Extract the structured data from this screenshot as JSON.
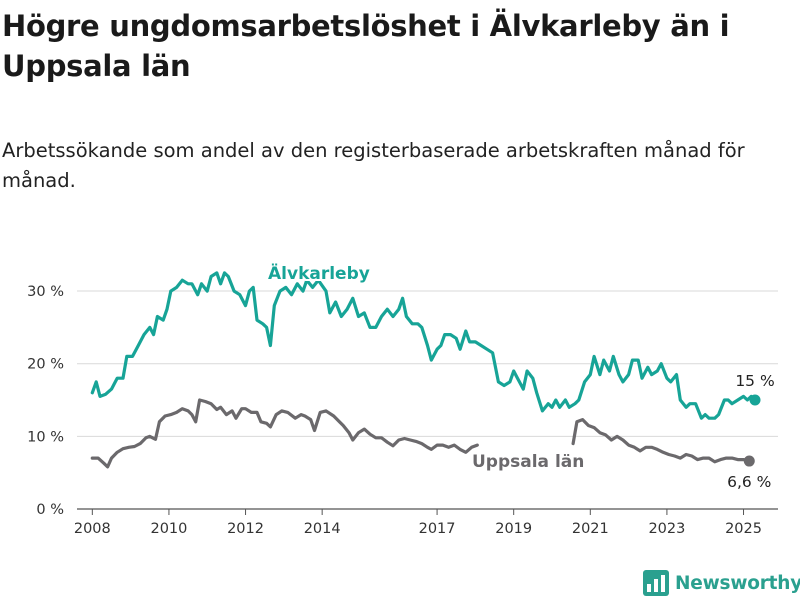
{
  "title": "Högre ungdomsarbetslöshet i Älvkarleby än i Uppsala län",
  "subtitle": "Arbetssökande som andel av den registerbaserade arbetskraften månad för månad.",
  "brand": {
    "name": "Newsworthy",
    "icon": "newsworthy-logo-icon"
  },
  "colors": {
    "alvkarleby": "#17a497",
    "uppsala": "#6b696c",
    "grid": "#d9d9d9"
  },
  "chart_data": {
    "type": "line",
    "title": "Högre ungdomsarbetslöshet i Älvkarleby än i Uppsala län",
    "xlabel": "",
    "ylabel": "",
    "xlim": [
      2007.6,
      2025.9
    ],
    "ylim": [
      0,
      34
    ],
    "grid": true,
    "legend": "inline labels",
    "x_ticks": [
      2008,
      2010,
      2012,
      2014,
      2017,
      2019,
      2021,
      2023,
      2025
    ],
    "x_tick_labels": [
      "2008",
      "2010",
      "2012",
      "2014",
      "2017",
      "2019",
      "2021",
      "2023",
      "2025"
    ],
    "y_ticks": [
      0,
      10,
      20,
      30
    ],
    "y_tick_labels": [
      "0 %",
      "10 %",
      "20 %",
      "30 %"
    ],
    "series": [
      {
        "name": "Älvkarleby",
        "end_label": "15 %",
        "points": [
          [
            2008.0,
            16.0
          ],
          [
            2008.1,
            17.5
          ],
          [
            2008.2,
            15.5
          ],
          [
            2008.35,
            15.8
          ],
          [
            2008.5,
            16.5
          ],
          [
            2008.65,
            18.0
          ],
          [
            2008.8,
            18.0
          ],
          [
            2008.9,
            21.0
          ],
          [
            2009.05,
            21.0
          ],
          [
            2009.2,
            22.5
          ],
          [
            2009.35,
            24.0
          ],
          [
            2009.5,
            25.0
          ],
          [
            2009.6,
            24.0
          ],
          [
            2009.7,
            26.5
          ],
          [
            2009.85,
            26.0
          ],
          [
            2009.95,
            27.5
          ],
          [
            2010.05,
            30.0
          ],
          [
            2010.2,
            30.5
          ],
          [
            2010.35,
            31.5
          ],
          [
            2010.5,
            31.0
          ],
          [
            2010.6,
            31.0
          ],
          [
            2010.75,
            29.5
          ],
          [
            2010.85,
            31.0
          ],
          [
            2011.0,
            30.0
          ],
          [
            2011.1,
            32.0
          ],
          [
            2011.25,
            32.5
          ],
          [
            2011.35,
            31.0
          ],
          [
            2011.45,
            32.5
          ],
          [
            2011.55,
            32.0
          ],
          [
            2011.7,
            30.0
          ],
          [
            2011.85,
            29.5
          ],
          [
            2012.0,
            28.0
          ],
          [
            2012.1,
            30.0
          ],
          [
            2012.2,
            30.5
          ],
          [
            2012.3,
            26.0
          ],
          [
            2012.45,
            25.5
          ],
          [
            2012.55,
            25.0
          ],
          [
            2012.65,
            22.5
          ],
          [
            2012.75,
            28.0
          ],
          [
            2012.9,
            30.0
          ],
          [
            2013.05,
            30.5
          ],
          [
            2013.2,
            29.5
          ],
          [
            2013.35,
            31.0
          ],
          [
            2013.5,
            30.0
          ],
          [
            2013.6,
            31.5
          ],
          [
            2013.75,
            30.5
          ],
          [
            2013.9,
            31.5
          ],
          [
            2014.1,
            30.0
          ],
          [
            2014.2,
            27.0
          ],
          [
            2014.35,
            28.5
          ],
          [
            2014.5,
            26.5
          ],
          [
            2014.65,
            27.5
          ],
          [
            2014.8,
            29.0
          ],
          [
            2014.95,
            26.5
          ],
          [
            2015.1,
            27.0
          ],
          [
            2015.25,
            25.0
          ],
          [
            2015.4,
            25.0
          ],
          [
            2015.55,
            26.5
          ],
          [
            2015.7,
            27.5
          ],
          [
            2015.85,
            26.5
          ],
          [
            2016.0,
            27.5
          ],
          [
            2016.1,
            29.0
          ],
          [
            2016.2,
            26.5
          ],
          [
            2016.35,
            25.5
          ],
          [
            2016.5,
            25.5
          ],
          [
            2016.6,
            25.0
          ],
          [
            2016.75,
            22.5
          ],
          [
            2016.85,
            20.5
          ],
          [
            2017.0,
            22.0
          ],
          [
            2017.1,
            22.5
          ],
          [
            2017.2,
            24.0
          ],
          [
            2017.35,
            24.0
          ],
          [
            2017.5,
            23.5
          ],
          [
            2017.6,
            22.0
          ],
          [
            2017.75,
            24.5
          ],
          [
            2017.85,
            23.0
          ],
          [
            2018.0,
            23.0
          ],
          [
            2018.15,
            22.5
          ],
          [
            2018.3,
            22.0
          ],
          [
            2018.45,
            21.5
          ],
          [
            2018.6,
            17.5
          ],
          [
            2018.75,
            17.0
          ],
          [
            2018.9,
            17.5
          ],
          [
            2019.0,
            19.0
          ],
          [
            2019.1,
            18.0
          ],
          [
            2019.25,
            16.5
          ],
          [
            2019.35,
            19.0
          ],
          [
            2019.5,
            18.0
          ],
          [
            2019.6,
            16.0
          ],
          [
            2019.75,
            13.5
          ],
          [
            2019.9,
            14.5
          ],
          [
            2020.0,
            14.0
          ],
          [
            2020.1,
            15.0
          ],
          [
            2020.2,
            14.0
          ],
          [
            2020.35,
            15.0
          ],
          [
            2020.45,
            14.0
          ],
          [
            2020.6,
            14.5
          ],
          [
            2020.7,
            15.0
          ],
          [
            2020.85,
            17.5
          ],
          [
            2021.0,
            18.5
          ],
          [
            2021.1,
            21.0
          ],
          [
            2021.25,
            18.5
          ],
          [
            2021.35,
            20.5
          ],
          [
            2021.5,
            19.0
          ],
          [
            2021.6,
            21.0
          ],
          [
            2021.75,
            18.5
          ],
          [
            2021.85,
            17.5
          ],
          [
            2022.0,
            18.5
          ],
          [
            2022.1,
            20.5
          ],
          [
            2022.25,
            20.5
          ],
          [
            2022.35,
            18.0
          ],
          [
            2022.5,
            19.5
          ],
          [
            2022.6,
            18.5
          ],
          [
            2022.75,
            19.0
          ],
          [
            2022.85,
            20.0
          ],
          [
            2023.0,
            18.0
          ],
          [
            2023.1,
            17.5
          ],
          [
            2023.25,
            18.5
          ],
          [
            2023.35,
            15.0
          ],
          [
            2023.5,
            14.0
          ],
          [
            2023.6,
            14.5
          ],
          [
            2023.75,
            14.5
          ],
          [
            2023.9,
            12.5
          ],
          [
            2024.0,
            13.0
          ],
          [
            2024.1,
            12.5
          ],
          [
            2024.25,
            12.5
          ],
          [
            2024.35,
            13.0
          ],
          [
            2024.5,
            15.0
          ],
          [
            2024.6,
            15.0
          ],
          [
            2024.7,
            14.5
          ],
          [
            2024.85,
            15.0
          ],
          [
            2025.0,
            15.5
          ],
          [
            2025.1,
            15.0
          ],
          [
            2025.2,
            15.5
          ],
          [
            2025.3,
            15.0
          ]
        ]
      },
      {
        "name": "Uppsala län",
        "end_label": "6,6 %",
        "points": [
          [
            2008.0,
            7.0
          ],
          [
            2008.15,
            7.0
          ],
          [
            2008.3,
            6.3
          ],
          [
            2008.4,
            5.8
          ],
          [
            2008.5,
            7.0
          ],
          [
            2008.65,
            7.8
          ],
          [
            2008.8,
            8.3
          ],
          [
            2008.95,
            8.5
          ],
          [
            2009.1,
            8.6
          ],
          [
            2009.25,
            9.0
          ],
          [
            2009.4,
            9.8
          ],
          [
            2009.5,
            10.0
          ],
          [
            2009.65,
            9.6
          ],
          [
            2009.75,
            12.0
          ],
          [
            2009.9,
            12.8
          ],
          [
            2010.05,
            13.0
          ],
          [
            2010.2,
            13.3
          ],
          [
            2010.35,
            13.8
          ],
          [
            2010.5,
            13.5
          ],
          [
            2010.6,
            13.0
          ],
          [
            2010.7,
            12.0
          ],
          [
            2010.8,
            15.0
          ],
          [
            2010.95,
            14.8
          ],
          [
            2011.1,
            14.5
          ],
          [
            2011.25,
            13.7
          ],
          [
            2011.35,
            14.0
          ],
          [
            2011.5,
            13.0
          ],
          [
            2011.65,
            13.5
          ],
          [
            2011.75,
            12.5
          ],
          [
            2011.9,
            13.8
          ],
          [
            2012.0,
            13.8
          ],
          [
            2012.15,
            13.3
          ],
          [
            2012.3,
            13.3
          ],
          [
            2012.4,
            12.0
          ],
          [
            2012.55,
            11.8
          ],
          [
            2012.65,
            11.3
          ],
          [
            2012.8,
            13.0
          ],
          [
            2012.95,
            13.5
          ],
          [
            2013.1,
            13.3
          ],
          [
            2013.3,
            12.5
          ],
          [
            2013.45,
            13.0
          ],
          [
            2013.55,
            12.8
          ],
          [
            2013.7,
            12.3
          ],
          [
            2013.8,
            10.8
          ],
          [
            2013.95,
            13.3
          ],
          [
            2014.1,
            13.5
          ],
          [
            2014.3,
            12.8
          ],
          [
            2014.45,
            12.0
          ],
          [
            2014.55,
            11.5
          ],
          [
            2014.7,
            10.5
          ],
          [
            2014.8,
            9.5
          ],
          [
            2014.95,
            10.5
          ],
          [
            2015.1,
            11.0
          ],
          [
            2015.25,
            10.3
          ],
          [
            2015.4,
            9.8
          ],
          [
            2015.55,
            9.8
          ],
          [
            2015.7,
            9.2
          ],
          [
            2015.85,
            8.7
          ],
          [
            2016.0,
            9.5
          ],
          [
            2016.15,
            9.7
          ],
          [
            2016.3,
            9.5
          ],
          [
            2016.45,
            9.3
          ],
          [
            2016.6,
            9.0
          ],
          [
            2016.75,
            8.5
          ],
          [
            2016.85,
            8.2
          ],
          [
            2017.0,
            8.8
          ],
          [
            2017.15,
            8.8
          ],
          [
            2017.3,
            8.5
          ],
          [
            2017.45,
            8.8
          ],
          [
            2017.6,
            8.2
          ],
          [
            2017.75,
            7.8
          ],
          [
            2017.9,
            8.5
          ],
          [
            2018.05,
            8.8
          ],
          [
            2020.55,
            9.0
          ],
          [
            2020.65,
            12.0
          ],
          [
            2020.8,
            12.3
          ],
          [
            2020.95,
            11.5
          ],
          [
            2021.1,
            11.2
          ],
          [
            2021.25,
            10.5
          ],
          [
            2021.4,
            10.2
          ],
          [
            2021.55,
            9.5
          ],
          [
            2021.7,
            10.0
          ],
          [
            2021.85,
            9.5
          ],
          [
            2022.0,
            8.8
          ],
          [
            2022.15,
            8.5
          ],
          [
            2022.3,
            8.0
          ],
          [
            2022.45,
            8.5
          ],
          [
            2022.6,
            8.5
          ],
          [
            2022.75,
            8.2
          ],
          [
            2022.9,
            7.8
          ],
          [
            2023.05,
            7.5
          ],
          [
            2023.2,
            7.3
          ],
          [
            2023.35,
            7.0
          ],
          [
            2023.5,
            7.5
          ],
          [
            2023.65,
            7.3
          ],
          [
            2023.8,
            6.8
          ],
          [
            2023.95,
            7.0
          ],
          [
            2024.1,
            7.0
          ],
          [
            2024.25,
            6.5
          ],
          [
            2024.4,
            6.8
          ],
          [
            2024.55,
            7.0
          ],
          [
            2024.7,
            7.0
          ],
          [
            2024.85,
            6.8
          ],
          [
            2025.0,
            6.8
          ],
          [
            2025.15,
            6.6
          ]
        ]
      }
    ]
  }
}
